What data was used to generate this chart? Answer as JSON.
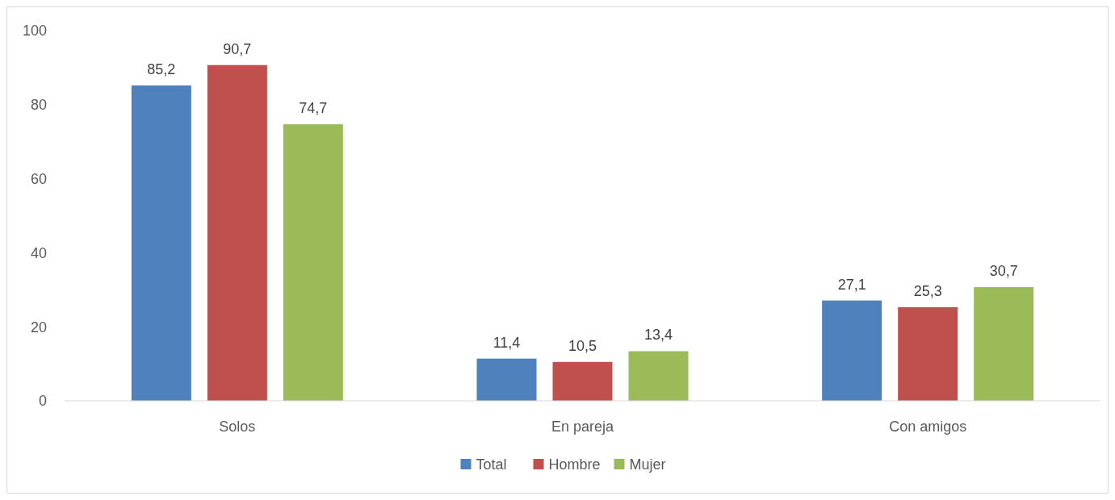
{
  "chart_data": {
    "type": "bar",
    "categories": [
      "Solos",
      "En pareja",
      "Con amigos"
    ],
    "series": [
      {
        "name": "Total",
        "color": "#4f81bd",
        "values": [
          85.2,
          11.4,
          27.1
        ],
        "value_labels": [
          "85,2",
          "11,4",
          "27,1"
        ]
      },
      {
        "name": "Hombre",
        "color": "#c0504d",
        "values": [
          90.7,
          10.5,
          25.3
        ],
        "value_labels": [
          "90,7",
          "10,5",
          "25,3"
        ]
      },
      {
        "name": "Mujer",
        "color": "#9bbb59",
        "values": [
          74.7,
          13.4,
          30.7
        ],
        "value_labels": [
          "74,7",
          "13,4",
          "30,7"
        ]
      }
    ],
    "ylim": [
      0,
      100
    ],
    "yticks": [
      0,
      20,
      40,
      60,
      80,
      100
    ],
    "grid": false,
    "legend": "bottom"
  }
}
